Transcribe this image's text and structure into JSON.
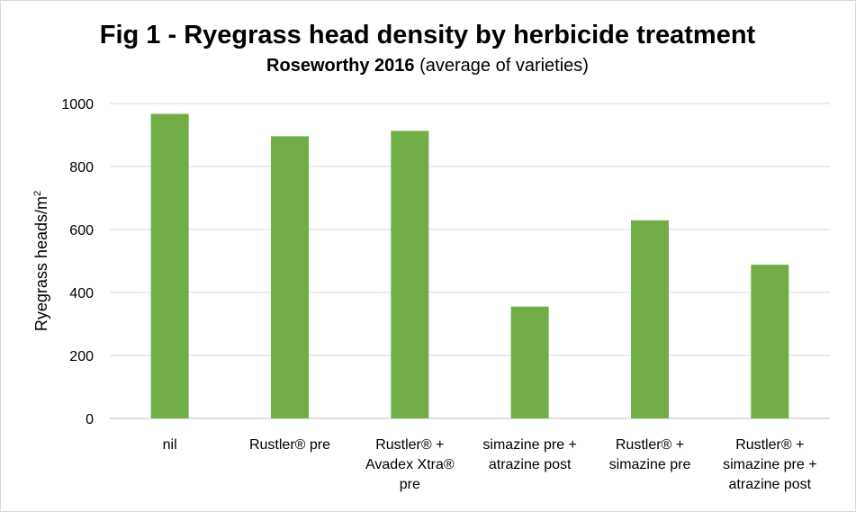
{
  "chart_data": {
    "type": "bar",
    "title": "Fig 1 - Ryegrass head density by herbicide treatment",
    "subtitle_bold": "Roseworthy 2016",
    "subtitle_rest": " (average of varieties)",
    "ylabel": "Ryegrass heads/m",
    "ylabel_sup": "2",
    "xlabel": "",
    "ylim": [
      0,
      1000
    ],
    "yticks": [
      0,
      200,
      400,
      600,
      800,
      1000
    ],
    "grid": true,
    "bar_color": "#70ad47",
    "grid_color": "#d9d9d9",
    "axis_color": "#bfbfbf",
    "categories": [
      "nil",
      "Rustler® pre",
      "Rustler® + Avadex Xtra® pre",
      "simazine pre + atrazine post",
      "Rustler® + simazine pre",
      "Rustler® + simazine pre + atrazine post"
    ],
    "category_lines": [
      [
        "nil"
      ],
      [
        "Rustler® pre"
      ],
      [
        "Rustler® +",
        "Avadex Xtra®",
        "pre"
      ],
      [
        "simazine pre +",
        "atrazine post"
      ],
      [
        "Rustler® +",
        "simazine pre"
      ],
      [
        "Rustler® +",
        "simazine pre +",
        "atrazine post"
      ]
    ],
    "values": [
      967,
      896,
      913,
      355,
      629,
      488
    ]
  }
}
